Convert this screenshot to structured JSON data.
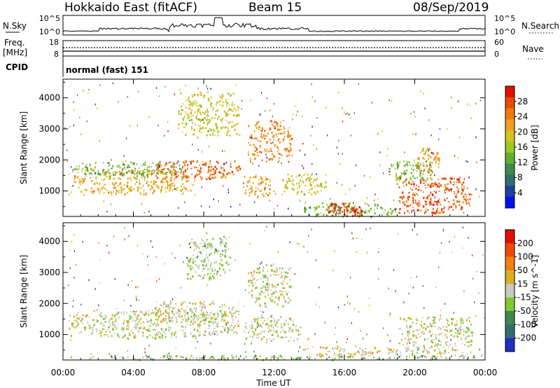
{
  "header": {
    "station": "Hokkaido East (fitACF)",
    "beam": "Beam 15",
    "date": "08/Sep/2019"
  },
  "nsky_panel": {
    "left_label": "N.Sky",
    "right_label": "N.Search",
    "left_ticks": [
      "10^5",
      "10^0"
    ],
    "right_ticks": [
      "10^5",
      "10^0"
    ]
  },
  "freq_panel": {
    "left_label_1": "Freq.",
    "left_label_2": "[MHz]",
    "right_label": "Nave",
    "left_ticks": [
      "18",
      "8"
    ],
    "right_ticks": [
      "60",
      "0"
    ]
  },
  "cpid_panel": {
    "label": "CPID",
    "text": "normal (fast) 151"
  },
  "chart_data": [
    {
      "type": "heatmap",
      "name": "power",
      "ylabel": "Slant Range [km]",
      "yticks": [
        "1000",
        "2000",
        "3000",
        "4000"
      ],
      "ylim": [
        180,
        4600
      ],
      "xlim": [
        0,
        24
      ],
      "colorbar_label": "Power [dB]",
      "colorbar_ticks": [
        "4",
        "8",
        "12",
        "16",
        "20",
        "24",
        "28"
      ],
      "colorbar_range": [
        0,
        32
      ],
      "colors": [
        "#0011ee",
        "#1f3f9f",
        "#2f6f6f",
        "#3e8a4a",
        "#5fb030",
        "#9ec820",
        "#d8c020",
        "#f0a020",
        "#f07a10",
        "#e84a08",
        "#e01000"
      ],
      "blobs": [
        {
          "t0": 0.3,
          "t1": 7.5,
          "r0": 900,
          "r1": 1700,
          "value": 21
        },
        {
          "t0": 0.5,
          "t1": 7.0,
          "r0": 1500,
          "r1": 1950,
          "value": 13
        },
        {
          "t0": 5.0,
          "t1": 10.2,
          "r0": 1400,
          "r1": 2000,
          "value": 26
        },
        {
          "t0": 10.5,
          "t1": 13.0,
          "r0": 1900,
          "r1": 3300,
          "value": 24
        },
        {
          "t0": 10.2,
          "t1": 12.0,
          "r0": 800,
          "r1": 1500,
          "value": 22
        },
        {
          "t0": 12.5,
          "t1": 15.0,
          "r0": 900,
          "r1": 1600,
          "value": 18
        },
        {
          "t0": 13.5,
          "t1": 19.0,
          "r0": 200,
          "r1": 650,
          "value": 14
        },
        {
          "t0": 15.0,
          "t1": 17.0,
          "r0": 200,
          "r1": 650,
          "value": 29
        },
        {
          "t0": 19.0,
          "t1": 23.2,
          "r0": 300,
          "r1": 1500,
          "value": 27
        },
        {
          "t0": 18.5,
          "t1": 21.0,
          "r0": 1300,
          "r1": 2000,
          "value": 14
        },
        {
          "t0": 20.0,
          "t1": 21.5,
          "r0": 1600,
          "r1": 2400,
          "value": 22
        },
        {
          "t0": 6.5,
          "t1": 10.0,
          "r0": 2800,
          "r1": 4200,
          "value": 18
        }
      ]
    },
    {
      "type": "heatmap",
      "name": "velocity",
      "ylabel": "Slant Range [km]",
      "yticks": [
        "1000",
        "2000",
        "3000",
        "4000"
      ],
      "ylim": [
        180,
        4600
      ],
      "xlim": [
        0,
        24
      ],
      "colorbar_label": "Velocity [m s^-1]",
      "colorbar_ticks": [
        "200",
        "100",
        "50",
        "15",
        "-15",
        "-50",
        "-100",
        "-200"
      ],
      "colorbar_range": [
        -250,
        250
      ],
      "colors": [
        "#2030c0",
        "#2f6f6f",
        "#3e8a4a",
        "#80c830",
        "#c8c8c0",
        "#d8b020",
        "#f08010",
        "#f04a08",
        "#e01000"
      ],
      "blobs": [
        {
          "t0": 0.3,
          "t1": 10.0,
          "r0": 900,
          "r1": 1800,
          "value": 0
        },
        {
          "t0": 5.0,
          "t1": 10.0,
          "r0": 1400,
          "r1": 2100,
          "value": 0
        },
        {
          "t0": 10.5,
          "t1": 13.0,
          "r0": 1900,
          "r1": 3300,
          "value": 0
        },
        {
          "t0": 10.2,
          "t1": 13.5,
          "r0": 800,
          "r1": 1600,
          "value": 0
        },
        {
          "t0": 13.5,
          "t1": 19.0,
          "r0": 350,
          "r1": 650,
          "value": 40
        },
        {
          "t0": 19.0,
          "t1": 23.3,
          "r0": 300,
          "r1": 1600,
          "value": 0
        },
        {
          "t0": 7.0,
          "t1": 9.5,
          "r0": 2800,
          "r1": 4200,
          "value": -40
        },
        {
          "t0": 0.2,
          "t1": 23.8,
          "r0": 200,
          "r1": 350,
          "value": -60
        }
      ]
    }
  ],
  "time_axis": {
    "label": "Time UT",
    "ticks": [
      "00:00",
      "04:00",
      "08:00",
      "12:00",
      "16:00",
      "20:00",
      "00:00"
    ]
  }
}
